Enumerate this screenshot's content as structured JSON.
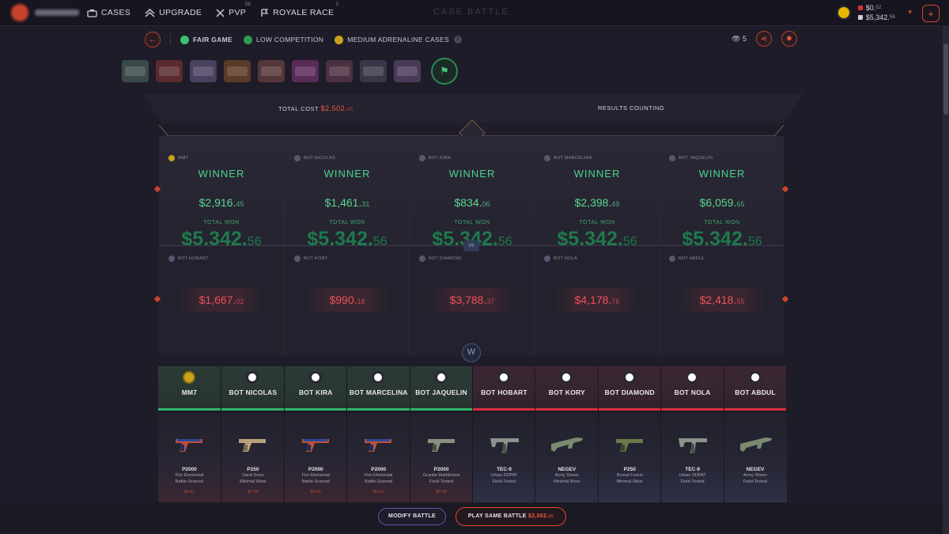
{
  "nav": {
    "cases": "CASES",
    "upgrade": "UPGRADE",
    "pvp": "PVP",
    "pvp_badge": "56",
    "royale": "ROYALE RACE",
    "royale_badge": "0"
  },
  "header": {
    "title": "CASE BATTLE"
  },
  "wallet": {
    "balance1": "$0.",
    "balance1_cents": "52",
    "balance2": "$5,342.",
    "balance2_cents": "56"
  },
  "battle": {
    "fair": "FAIR GAME",
    "competition": "LOW COMPETITION",
    "adrenaline": "MEDIUM ADRENALINE CASES",
    "viewers": "5"
  },
  "totals": {
    "label": "TOTAL COST",
    "cost": "$2,502.",
    "cost_cents": "65",
    "status": "RESULTS COUNTING"
  },
  "winners": [
    {
      "name": "MM7",
      "result": "WINNER",
      "amount": "$2,916.",
      "cents": "45",
      "total_label": "TOTAL WON",
      "total": "$5,342.",
      "total_cents": "56"
    },
    {
      "name": "BOT NICOLAS",
      "result": "WINNER",
      "amount": "$1,461.",
      "cents": "31",
      "total_label": "TOTAL WON",
      "total": "$5,342.",
      "total_cents": "56"
    },
    {
      "name": "BOT KIRA",
      "result": "WINNER",
      "amount": "$834.",
      "cents": "06",
      "total_label": "TOTAL WON",
      "total": "$5,342.",
      "total_cents": "56"
    },
    {
      "name": "BOT MARCELINA",
      "result": "WINNER",
      "amount": "$2,398.",
      "cents": "49",
      "total_label": "TOTAL WON",
      "total": "$5,342.",
      "total_cents": "56"
    },
    {
      "name": "BOT JAQUELIN",
      "result": "WINNER",
      "amount": "$6,059.",
      "cents": "65",
      "total_label": "TOTAL WON",
      "total": "$5,342.",
      "total_cents": "56"
    }
  ],
  "vs": "VS",
  "losers": [
    {
      "name": "BOT HOBART",
      "amount": "$1,667.",
      "cents": "02"
    },
    {
      "name": "BOT KORY",
      "amount": "$990.",
      "cents": "18"
    },
    {
      "name": "BOT DIAMOND",
      "amount": "$3,788.",
      "cents": "37"
    },
    {
      "name": "BOT NOLA",
      "amount": "$4,178.",
      "cents": "76"
    },
    {
      "name": "BOT ABDUL",
      "amount": "$2,418.",
      "cents": "55"
    }
  ],
  "players": [
    {
      "name": "MM7",
      "team": "win",
      "gun": "pistol",
      "weapon": "P2000",
      "skin": "Fire Elemental",
      "wear": "Battle-Scarred",
      "price": "$9.61"
    },
    {
      "name": "BOT NICOLAS",
      "team": "win",
      "gun": "pistol-tan",
      "weapon": "P250",
      "skin": "Sand Dune",
      "wear": "Minimal Wear",
      "price": "$0.35"
    },
    {
      "name": "BOT KIRA",
      "team": "win",
      "gun": "pistol",
      "weapon": "P2000",
      "skin": "Fire Elemental",
      "wear": "Battle-Scarred",
      "price": "$9.61"
    },
    {
      "name": "BOT MARCELINA",
      "team": "win",
      "gun": "pistol",
      "weapon": "P2000",
      "skin": "Fire Elemental",
      "wear": "Battle-Scarred",
      "price": "$9.61"
    },
    {
      "name": "BOT JAQUELIN",
      "team": "win",
      "gun": "pistol-grey",
      "weapon": "P2000",
      "skin": "Granite Marbleized",
      "wear": "Field-Tested",
      "price": "$0.08"
    },
    {
      "name": "BOT HOBART",
      "team": "lose",
      "gun": "smg",
      "weapon": "TEC-9",
      "skin": "Urban DDPAT",
      "wear": "Field-Tested",
      "price": ""
    },
    {
      "name": "BOT KORY",
      "team": "lose",
      "gun": "rifle",
      "weapon": "NEGEV",
      "skin": "Army Sheen",
      "wear": "Minimal Wear",
      "price": ""
    },
    {
      "name": "BOT DIAMOND",
      "team": "lose",
      "gun": "pistol-green",
      "weapon": "P250",
      "skin": "Boreal Forest",
      "wear": "Minimal Wear",
      "price": ""
    },
    {
      "name": "BOT NOLA",
      "team": "lose",
      "gun": "smg",
      "weapon": "TEC-9",
      "skin": "Urban DDPAT",
      "wear": "Field-Tested",
      "price": ""
    },
    {
      "name": "BOT ABDUL",
      "team": "lose",
      "gun": "rifle",
      "weapon": "NEGEV",
      "skin": "Army Sheen",
      "wear": "Field-Tested",
      "price": ""
    }
  ],
  "actions": {
    "modify": "MODIFY BATTLE",
    "play": "PLAY SAME BATTLE",
    "play_amount": "$2,502.",
    "play_cents": "65"
  },
  "colors": {
    "accent": "#e0492f",
    "win": "#4bd48a",
    "lose": "#f0505a",
    "bg": "#1e1c28"
  }
}
